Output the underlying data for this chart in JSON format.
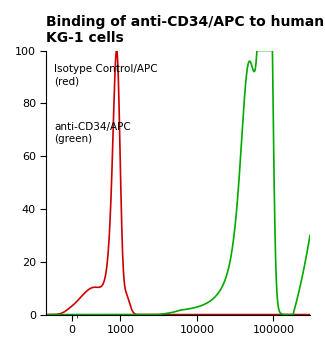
{
  "title": "Binding of anti-CD34/APC to human\nKG-1 cells",
  "title_fontsize": 10,
  "title_fontweight": "bold",
  "ylabel_values": [
    0,
    20,
    40,
    60,
    80,
    100
  ],
  "ylim": [
    0,
    100
  ],
  "xtick_labels": [
    "0",
    "1000",
    "10000",
    "100000"
  ],
  "xtick_positions": [
    0,
    1000,
    10000,
    100000
  ],
  "background_color": "#ffffff",
  "plot_bg_color": "#ffffff",
  "red_color": "#cc0000",
  "green_color": "#00aa00",
  "legend_text_1": "Isotype Control/APC\n(red)",
  "legend_text_2": "anti-CD34/APC\n(green)",
  "linthresh": 500,
  "linscale": 0.3,
  "x_min": -500,
  "x_max": 300000
}
